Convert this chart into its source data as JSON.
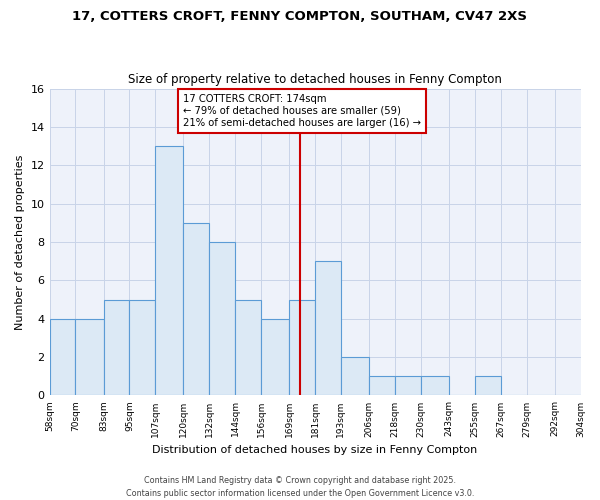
{
  "title_line1": "17, COTTERS CROFT, FENNY COMPTON, SOUTHAM, CV47 2XS",
  "title_line2": "Size of property relative to detached houses in Fenny Compton",
  "xlabel": "Distribution of detached houses by size in Fenny Compton",
  "ylabel": "Number of detached properties",
  "bin_edges": [
    58,
    70,
    83,
    95,
    107,
    120,
    132,
    144,
    156,
    169,
    181,
    193,
    206,
    218,
    230,
    243,
    255,
    267,
    279,
    292,
    304
  ],
  "bar_heights": [
    4,
    4,
    5,
    5,
    13,
    9,
    8,
    5,
    4,
    5,
    7,
    2,
    1,
    1,
    1,
    0,
    1,
    0,
    0,
    0
  ],
  "bar_facecolor": "#dce9f5",
  "bar_edgecolor": "#5b9bd5",
  "vline_x": 174,
  "vline_color": "#cc0000",
  "ylim": [
    0,
    16
  ],
  "yticks": [
    0,
    2,
    4,
    6,
    8,
    10,
    12,
    14,
    16
  ],
  "grid_color": "#c8d4e8",
  "background_color": "#eef2fa",
  "annotation_title": "17 COTTERS CROFT: 174sqm",
  "annotation_line1": "← 79% of detached houses are smaller (59)",
  "annotation_line2": "21% of semi-detached houses are larger (16) →",
  "annotation_box_edgecolor": "#cc0000",
  "footnote1": "Contains HM Land Registry data © Crown copyright and database right 2025.",
  "footnote2": "Contains public sector information licensed under the Open Government Licence v3.0."
}
